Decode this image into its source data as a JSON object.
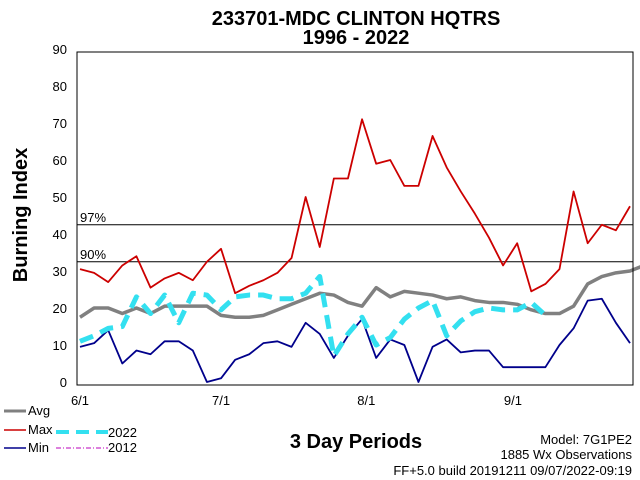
{
  "chart_data": {
    "type": "line",
    "title": "233701-MDC CLINTON HQTRS",
    "subtitle": "1996 - 2022",
    "xlabel": "3 Day Periods",
    "ylabel": "Burning Index",
    "ylim": [
      0,
      90
    ],
    "yticks": [
      0,
      10,
      20,
      30,
      40,
      50,
      60,
      70,
      80,
      90
    ],
    "x_ticks": [
      {
        "label": "6/1",
        "period": 0
      },
      {
        "label": "7/1",
        "period": 10
      },
      {
        "label": "8/1",
        "period": 20.3
      },
      {
        "label": "9/1",
        "period": 30.7
      }
    ],
    "x_range": [
      0,
      39
    ],
    "percentile_lines": [
      {
        "label": "97%",
        "value": 42.5
      },
      {
        "label": "90%",
        "value": 32.5
      }
    ],
    "series": [
      {
        "name": "Avg",
        "color": "#808080",
        "style": "solid-thick",
        "values": [
          17.5,
          20,
          20,
          18.5,
          20,
          18.5,
          20.5,
          20.5,
          20.5,
          20.5,
          18,
          17.5,
          17.5,
          18,
          19.5,
          21,
          22.5,
          24,
          23.5,
          21.5,
          20.5,
          25.5,
          23,
          24.5,
          24,
          23.5,
          22.5,
          23,
          22,
          21.5,
          21.5,
          21,
          19.5,
          18.5,
          18.5,
          20.5,
          26.5,
          28.5,
          29.5,
          30,
          31.5
        ]
      },
      {
        "name": "Max",
        "color": "#cc0000",
        "style": "solid",
        "values": [
          30.5,
          29.5,
          27,
          31.5,
          34,
          25.5,
          28,
          29.5,
          27.5,
          32.5,
          36,
          24,
          26,
          27.5,
          29.5,
          33.5,
          50,
          36.5,
          55,
          55,
          71,
          59,
          60,
          53,
          53,
          66.5,
          58,
          51.5,
          45.5,
          39,
          31.5,
          37.5,
          24.5,
          26.5,
          30.5,
          51.5,
          37.5,
          42.5,
          41,
          47.5
        ]
      },
      {
        "name": "Min",
        "color": "#00008b",
        "style": "solid",
        "values": [
          9.5,
          10.5,
          14,
          5,
          8.5,
          7.5,
          11,
          11,
          8.5,
          0,
          1,
          6,
          7.5,
          10.5,
          11,
          9.5,
          16,
          13,
          6.5,
          12.5,
          17,
          6.5,
          11.5,
          10,
          0,
          9.5,
          11.5,
          8,
          8.5,
          8.5,
          4,
          4,
          4,
          4,
          10,
          14.5,
          22,
          22.5,
          16,
          10.5
        ]
      },
      {
        "name": "2022",
        "color": "#33e0f0",
        "style": "dashed-thick",
        "values": [
          11,
          12.5,
          14.5,
          15,
          23,
          18.5,
          23.5,
          16,
          24,
          23.5,
          19.5,
          23,
          23.5,
          23.5,
          22.5,
          22.5,
          24,
          28.5,
          7,
          13,
          17.5,
          10,
          12,
          17,
          20,
          22,
          12.5,
          16.5,
          19,
          20,
          19.5,
          19.5,
          21.5,
          18
        ]
      },
      {
        "name": "2012",
        "color": "#bb00bb",
        "style": "dash-dot",
        "values": []
      }
    ]
  },
  "footer": {
    "model": "Model: 7G1PE2",
    "observations": "1885 Wx Observations",
    "build": "FF+5.0 build 20191211 09/07/2022-09:19"
  }
}
